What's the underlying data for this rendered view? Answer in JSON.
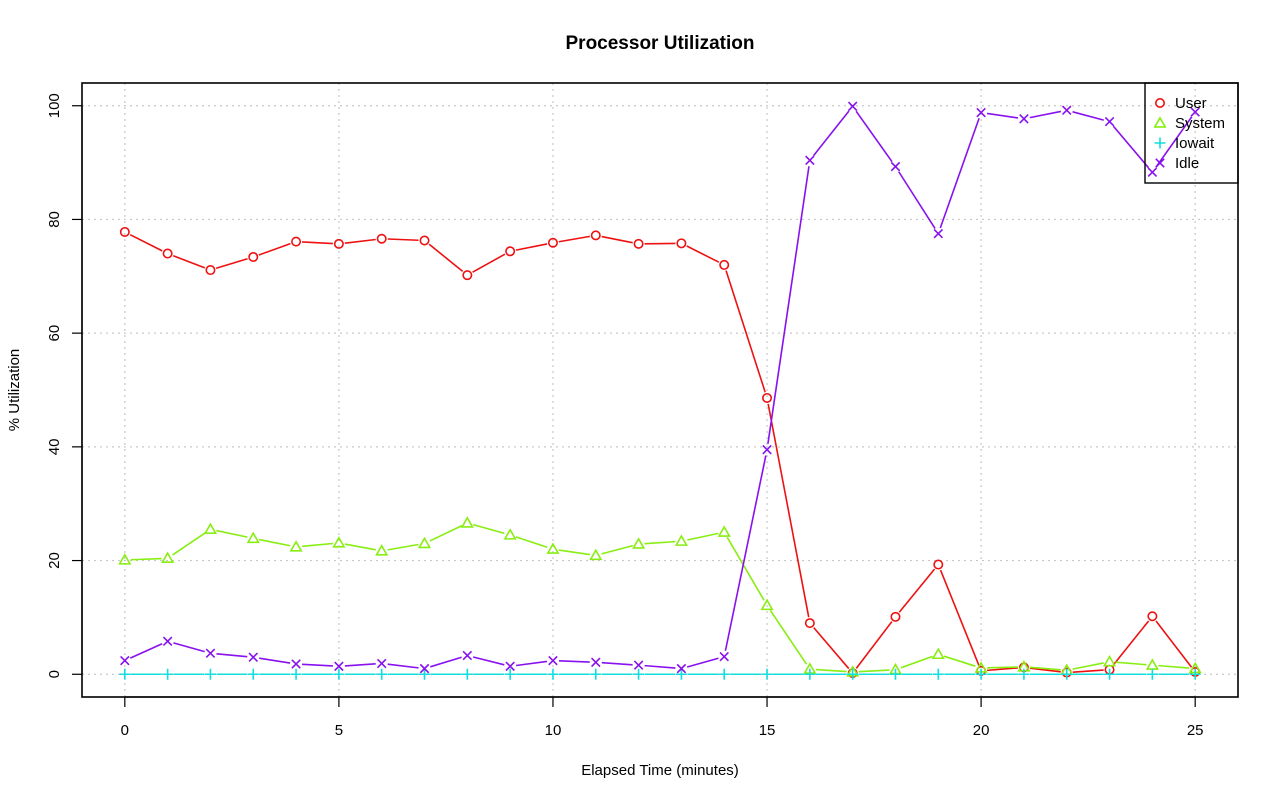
{
  "chart_data": {
    "type": "line",
    "title": "Processor Utilization",
    "xlabel": "Elapsed Time (minutes)",
    "ylabel": "% Utilization",
    "xlim": [
      -1,
      26
    ],
    "ylim": [
      -4,
      104
    ],
    "x_ticks": [
      0,
      5,
      10,
      15,
      20,
      25
    ],
    "y_ticks": [
      0,
      20,
      40,
      60,
      80,
      100
    ],
    "grid": true,
    "legend_position": "top-right",
    "x": [
      0,
      1,
      2,
      3,
      4,
      5,
      6,
      7,
      8,
      9,
      10,
      11,
      12,
      13,
      14,
      15,
      16,
      17,
      18,
      19,
      20,
      21,
      22,
      23,
      24,
      25
    ],
    "series": [
      {
        "name": "User",
        "color": "#ee1111",
        "marker": "circle",
        "values": [
          77.8,
          74.0,
          71.1,
          73.4,
          76.1,
          75.7,
          76.6,
          76.3,
          70.2,
          74.4,
          75.9,
          77.2,
          75.7,
          75.8,
          72.0,
          48.6,
          9.0,
          0.2,
          10.1,
          19.3,
          0.6,
          1.2,
          0.3,
          0.8,
          10.2,
          0.4
        ]
      },
      {
        "name": "System",
        "color": "#88ee11",
        "marker": "triangle",
        "values": [
          20.1,
          20.4,
          25.5,
          23.9,
          22.4,
          23.1,
          21.7,
          23.0,
          26.6,
          24.5,
          22.0,
          20.9,
          22.9,
          23.4,
          25.0,
          12.1,
          0.9,
          0.4,
          0.8,
          3.5,
          1.1,
          1.3,
          0.7,
          2.2,
          1.6,
          1.0
        ]
      },
      {
        "name": "Iowait",
        "color": "#11dddd",
        "marker": "plus",
        "values": [
          0,
          0,
          0,
          0,
          0,
          0,
          0,
          0,
          0,
          0,
          0,
          0,
          0,
          0,
          0,
          0,
          0,
          0,
          0,
          0,
          0,
          0,
          0,
          0,
          0,
          0
        ]
      },
      {
        "name": "Idle",
        "color": "#8811ee",
        "marker": "cross",
        "values": [
          2.4,
          5.8,
          3.7,
          3.0,
          1.8,
          1.4,
          1.9,
          1.0,
          3.3,
          1.4,
          2.4,
          2.1,
          1.6,
          1.0,
          3.1,
          39.5,
          90.4,
          99.9,
          89.3,
          77.5,
          98.8,
          97.7,
          99.2,
          97.2,
          88.3,
          98.9
        ]
      }
    ]
  }
}
